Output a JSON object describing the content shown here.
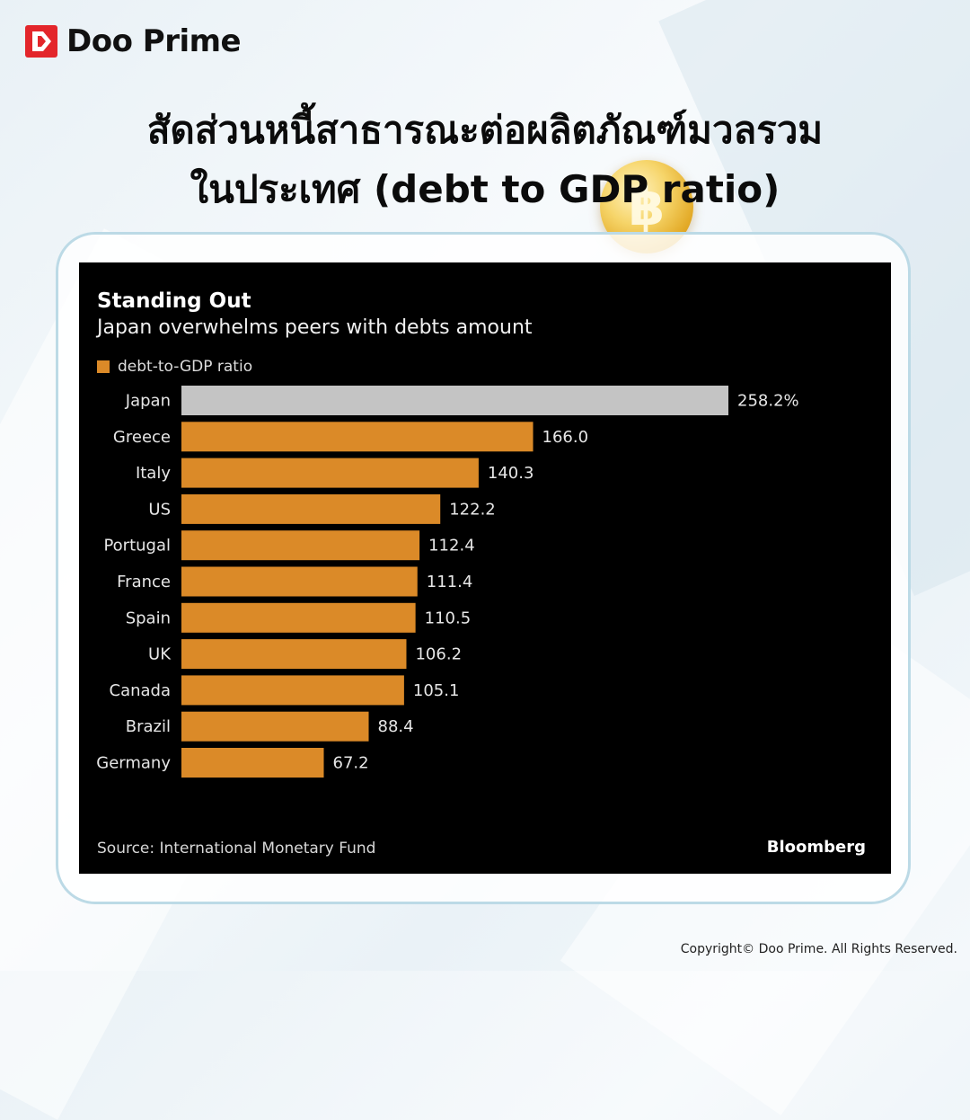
{
  "brand": {
    "name": "Doo Prime",
    "icon": "doo-prime-logo-icon",
    "color": "#e3262b"
  },
  "headline": {
    "line1": "สัดส่วนหนี้สาธารณะต่อผลิตภัณฑ์มวลรวม",
    "line2": "ในประเทศ (debt to GDP ratio)"
  },
  "decoration": {
    "coin_icon": "coin-icon"
  },
  "chart_data": {
    "type": "bar",
    "orientation": "horizontal",
    "title": "Standing Out",
    "subtitle": "Japan overwhelms peers with debts amount",
    "legend": "debt-to-GDP ratio",
    "categories": [
      "Japan",
      "Greece",
      "Italy",
      "US",
      "Portugal",
      "France",
      "Spain",
      "UK",
      "Canada",
      "Brazil",
      "Germany"
    ],
    "values": [
      258.2,
      166.0,
      140.3,
      122.2,
      112.4,
      111.4,
      110.5,
      106.2,
      105.1,
      88.4,
      67.2
    ],
    "labels": [
      "258.2%",
      "166.0",
      "140.3",
      "122.2",
      "112.4",
      "111.4",
      "110.5",
      "106.2",
      "105.1",
      "88.4",
      "67.2"
    ],
    "highlight": "Japan",
    "colors": {
      "bar": "#db8a28",
      "highlight": "#c4c4c4",
      "background": "#000000"
    },
    "xlim": [
      0,
      258.2
    ],
    "grid": false,
    "source": "Source: International Monetary Fund",
    "publisher": "Bloomberg"
  },
  "footer": {
    "copyright": "Copyright© Doo Prime. All Rights Reserved."
  }
}
